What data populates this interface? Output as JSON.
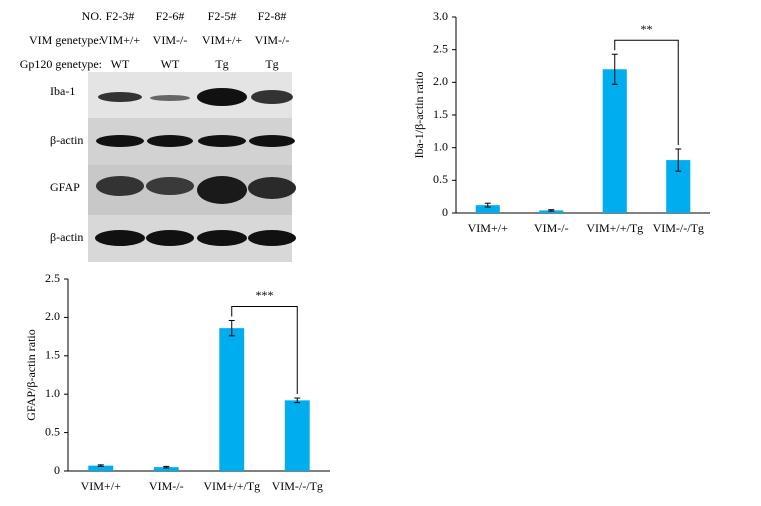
{
  "blot": {
    "header_rows": [
      {
        "label": "NO.",
        "lanes": [
          "F2-3#",
          "F2-6#",
          "F2-5#",
          "F2-8#"
        ]
      },
      {
        "label": "VIM genetype:",
        "lanes": [
          "VIM+/+",
          "VIM-/-",
          "VIM+/+",
          "VIM-/-"
        ]
      },
      {
        "label": "Gp120 genetype:",
        "lanes": [
          "WT",
          "WT",
          "Tg",
          "Tg"
        ]
      }
    ],
    "bands": [
      "Iba-1",
      "β-actin",
      "GFAP",
      "β-actin"
    ]
  },
  "chart_data": [
    {
      "type": "bar",
      "ylabel": "Iba-1/β-actin ratio",
      "categories": [
        "VIM+/+",
        "VIM-/-",
        "VIM+/+/Tg",
        "VIM-/-/Tg"
      ],
      "values": [
        0.12,
        0.04,
        2.2,
        0.81
      ],
      "errors": [
        0.03,
        0.01,
        0.23,
        0.17
      ],
      "color": "#00aeef",
      "ylim": [
        0,
        3
      ],
      "yticks": [
        0,
        0.5,
        {
          "value": 1,
          "label": "1.0"
        },
        1.5,
        {
          "value": 2,
          "label": "2.0"
        },
        2.5,
        {
          "value": 3,
          "label": "3.0"
        }
      ],
      "annotation": "**"
    },
    {
      "type": "bar",
      "ylabel": "GFAP/β-actin ratio",
      "categories": [
        "VIM+/+",
        "VIM-/-",
        "VIM+/+/Tg",
        "VIM-/-/Tg"
      ],
      "values": [
        0.07,
        0.05,
        1.86,
        0.92
      ],
      "errors": [
        0.01,
        0.01,
        0.1,
        0.03
      ],
      "color": "#00aeef",
      "ylim": [
        0,
        2.5
      ],
      "yticks": [
        0,
        0.5,
        {
          "value": 1,
          "label": "1.0"
        },
        1.5,
        {
          "value": 2,
          "label": "2.0"
        },
        2.5
      ],
      "annotation": "***"
    }
  ]
}
